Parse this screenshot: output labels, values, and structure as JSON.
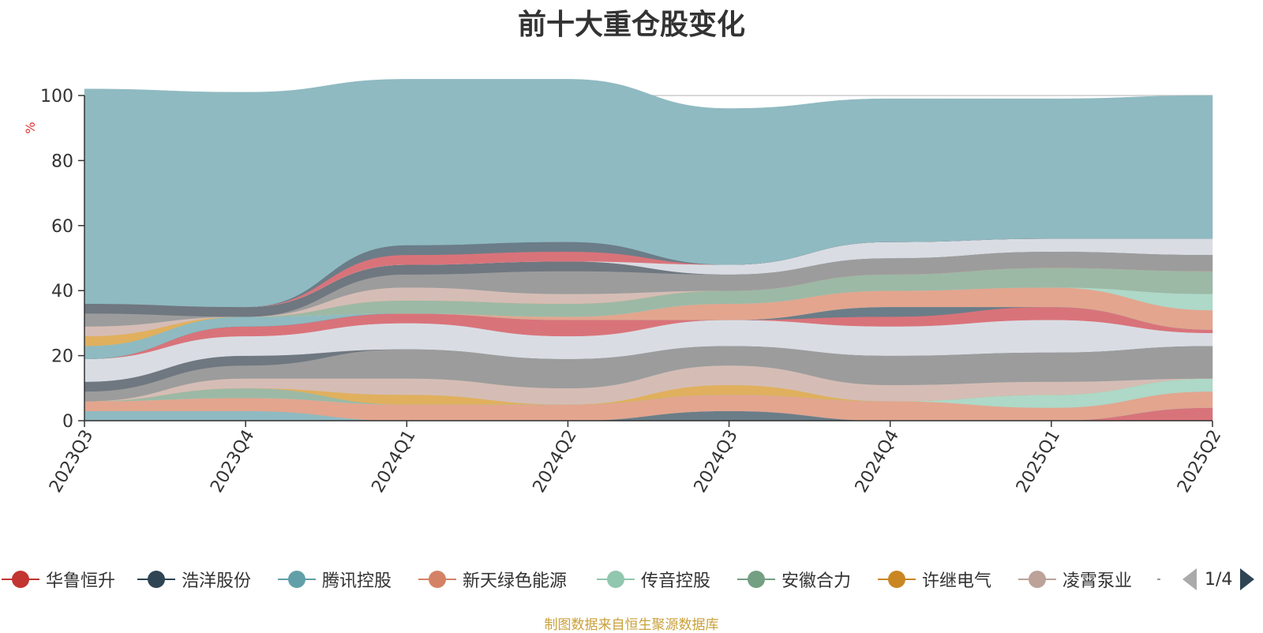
{
  "title": "前十大重仓股变化",
  "source": "制图数据来自恒生聚源数据库",
  "pager": {
    "text": "1/4"
  },
  "legend": [
    {
      "name": "华鲁恒升",
      "color": "#c23531"
    },
    {
      "name": "浩洋股份",
      "color": "#2f4554"
    },
    {
      "name": "腾讯控股",
      "color": "#61a0a8"
    },
    {
      "name": "新天绿色能源",
      "color": "#d48265"
    },
    {
      "name": "传音控股",
      "color": "#91c7ae"
    },
    {
      "name": "安徽合力",
      "color": "#749f83"
    },
    {
      "name": "许继电气",
      "color": "#ca8622"
    },
    {
      "name": "凌霄泵业",
      "color": "#bda29a"
    }
  ],
  "chart_data": {
    "type": "area",
    "title": "前十大重仓股变化",
    "ylabel": "%",
    "ylim": [
      0,
      100
    ],
    "yticks": [
      "0",
      "20",
      "40",
      "60",
      "80",
      "100"
    ],
    "categories": [
      "2023Q3",
      "2023Q4",
      "2024Q1",
      "2024Q2",
      "2024Q3",
      "2024Q4",
      "2025Q1",
      "2025Q2"
    ],
    "stacked": true,
    "grid": true,
    "series": [
      {
        "color": "#d9737a",
        "values": [
          0,
          0,
          0,
          0,
          0,
          0,
          0,
          4
        ]
      },
      {
        "color": "#6b7d88",
        "values": [
          0,
          0,
          0,
          0,
          3,
          0,
          0,
          0
        ]
      },
      {
        "color": "#8fbac1",
        "values": [
          3,
          3,
          0,
          0,
          0,
          0,
          0,
          0
        ]
      },
      {
        "color": "#e3a58e",
        "values": [
          3,
          4,
          5,
          5,
          5,
          6,
          4,
          5
        ]
      },
      {
        "color": "#aed8c8",
        "values": [
          0,
          0,
          0,
          0,
          0,
          0,
          4,
          4
        ]
      },
      {
        "color": "#9cb9a6",
        "values": [
          0,
          3,
          0,
          0,
          0,
          0,
          0,
          0
        ]
      },
      {
        "color": "#e0b05e",
        "values": [
          0,
          0,
          3,
          0,
          3,
          0,
          0,
          0
        ]
      },
      {
        "color": "#d5bdb6",
        "values": [
          0,
          3,
          5,
          5,
          6,
          5,
          4,
          0
        ]
      },
      {
        "color": "#9c9c9c",
        "values": [
          3,
          4,
          9,
          9,
          6,
          9,
          9,
          10
        ]
      },
      {
        "color": "#6f7780",
        "values": [
          3,
          3,
          0,
          0,
          0,
          0,
          0,
          0
        ]
      },
      {
        "color": "#d9dde3",
        "values": [
          7,
          6,
          8,
          7,
          8,
          9,
          10,
          4
        ]
      },
      {
        "color": "#d9737a",
        "values": [
          0,
          3,
          3,
          5,
          0,
          3,
          4,
          1
        ]
      },
      {
        "color": "#6b7d88",
        "values": [
          0,
          0,
          0,
          0,
          0,
          3,
          0,
          0
        ]
      },
      {
        "color": "#8fbac1",
        "values": [
          4,
          3,
          0,
          0,
          0,
          0,
          0,
          0
        ]
      },
      {
        "color": "#e3a58e",
        "values": [
          0,
          0,
          0,
          1,
          5,
          5,
          6,
          6
        ]
      },
      {
        "color": "#aed8c8",
        "values": [
          0,
          0,
          0,
          0,
          0,
          0,
          0,
          5
        ]
      },
      {
        "color": "#9cb9a6",
        "values": [
          0,
          0,
          4,
          4,
          4,
          5,
          6,
          7
        ]
      },
      {
        "color": "#e0b05e",
        "values": [
          3,
          0,
          0,
          0,
          0,
          0,
          0,
          0
        ]
      },
      {
        "color": "#d5bdb6",
        "values": [
          3,
          0,
          4,
          3,
          0,
          0,
          0,
          0
        ]
      },
      {
        "color": "#9c9c9c",
        "values": [
          4,
          0,
          4,
          7,
          5,
          5,
          5,
          5
        ]
      },
      {
        "color": "#6f7780",
        "values": [
          3,
          3,
          3,
          3,
          0,
          0,
          0,
          0
        ]
      },
      {
        "color": "#d9dde3",
        "values": [
          0,
          0,
          0,
          0,
          3,
          5,
          4,
          5
        ]
      },
      {
        "color": "#d9737a",
        "values": [
          0,
          0,
          3,
          3,
          0,
          0,
          0,
          0
        ]
      },
      {
        "color": "#6b7d88",
        "values": [
          0,
          0,
          3,
          3,
          0,
          0,
          0,
          0
        ]
      },
      {
        "color": "#8fbac1",
        "values": [
          66,
          66,
          51,
          50,
          48,
          44,
          43,
          44
        ]
      }
    ]
  }
}
